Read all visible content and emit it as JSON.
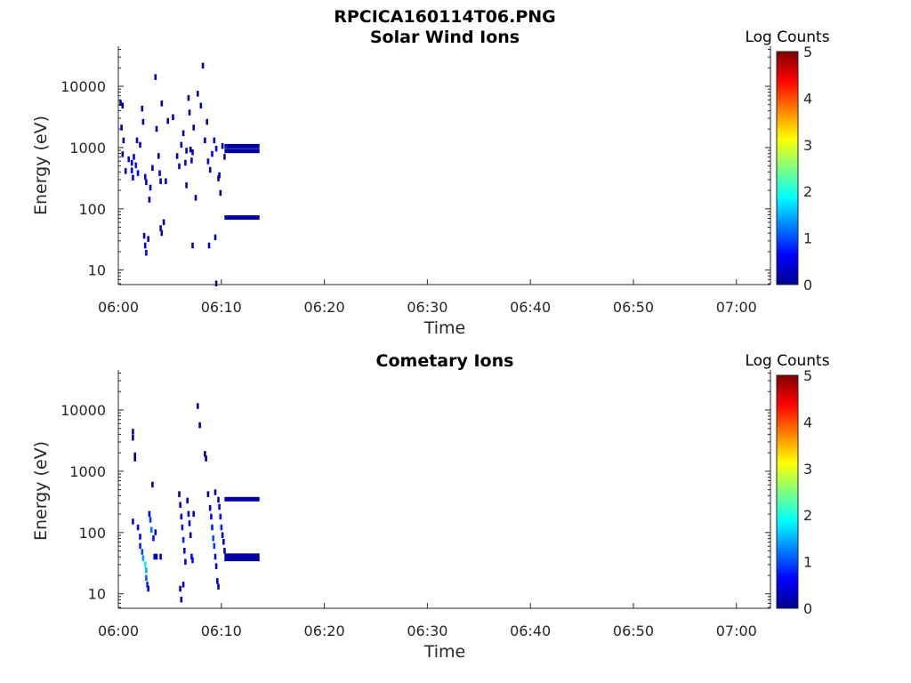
{
  "figure": {
    "title": "RPCICA160114T06.PNG"
  },
  "chart_data": [
    {
      "type": "heatmap",
      "title": "Solar Wind Ions",
      "xlabel": "Time",
      "ylabel": "Energy (eV)",
      "x_tick_labels": [
        "06:00",
        "06:10",
        "06:20",
        "06:30",
        "06:40",
        "06:50",
        "07:00"
      ],
      "x_tick_values_min": [
        0,
        10,
        20,
        30,
        40,
        50,
        60
      ],
      "xlim_min": [
        0,
        63.3
      ],
      "y_scale": "log",
      "y_tick_labels": [
        "10",
        "100",
        "1000",
        "10000"
      ],
      "y_tick_values": [
        10,
        100,
        1000,
        10000
      ],
      "ylim": [
        5.8,
        45000
      ],
      "colorbar": {
        "label": "Log Counts",
        "min": 0,
        "max": 5,
        "tick_labels": [
          "0",
          "1",
          "2",
          "3",
          "4",
          "5"
        ],
        "colormap": "jet"
      },
      "cells": [
        [
          0.1,
          5300,
          0.1
        ],
        [
          0.3,
          4800,
          0.1
        ],
        [
          0.2,
          2100,
          0.1
        ],
        [
          0.4,
          1300,
          0.1
        ],
        [
          0.3,
          770,
          0.2
        ],
        [
          0.6,
          410,
          0.2
        ],
        [
          0.9,
          640,
          0.3
        ],
        [
          1.2,
          560,
          0.4
        ],
        [
          1.2,
          420,
          0.5
        ],
        [
          1.3,
          320,
          0.6
        ],
        [
          1.4,
          700,
          0.6
        ],
        [
          1.6,
          510,
          0.7
        ],
        [
          1.7,
          1300,
          0.4
        ],
        [
          1.8,
          380,
          0.5
        ],
        [
          2.0,
          1100,
          0.3
        ],
        [
          2.2,
          4300,
          0.2
        ],
        [
          2.3,
          2600,
          0.1
        ],
        [
          2.5,
          330,
          0.4
        ],
        [
          2.6,
          270,
          0.3
        ],
        [
          2.9,
          140,
          0.2
        ],
        [
          2.4,
          36,
          0.4
        ],
        [
          2.5,
          25,
          0.5
        ],
        [
          2.6,
          19,
          0.6
        ],
        [
          2.8,
          32,
          0.3
        ],
        [
          3.0,
          220,
          0.2
        ],
        [
          3.2,
          460,
          0.3
        ],
        [
          3.5,
          14000,
          0.2
        ],
        [
          3.6,
          2000,
          0.2
        ],
        [
          3.8,
          720,
          0.3
        ],
        [
          3.9,
          380,
          0.4
        ],
        [
          4.0,
          280,
          0.3
        ],
        [
          4.1,
          5200,
          0.2
        ],
        [
          4.3,
          60,
          0.2
        ],
        [
          4.5,
          280,
          0.3
        ],
        [
          4.0,
          48,
          0.2
        ],
        [
          4.1,
          40,
          0.2
        ],
        [
          4.7,
          2700,
          0.1
        ],
        [
          5.2,
          3100,
          0.1
        ],
        [
          5.6,
          720,
          0.2
        ],
        [
          5.8,
          490,
          0.3
        ],
        [
          6.0,
          1100,
          0.2
        ],
        [
          6.2,
          1700,
          0.1
        ],
        [
          6.4,
          560,
          0.3
        ],
        [
          6.5,
          880,
          0.4
        ],
        [
          6.7,
          6400,
          0.2
        ],
        [
          6.8,
          3700,
          0.1
        ],
        [
          6.9,
          920,
          0.3
        ],
        [
          7.0,
          610,
          0.4
        ],
        [
          7.1,
          830,
          0.5
        ],
        [
          7.2,
          2100,
          0.2
        ],
        [
          7.4,
          150,
          0.1
        ],
        [
          7.6,
          7500,
          0.1
        ],
        [
          7.9,
          4800,
          0.2
        ],
        [
          8.1,
          21500,
          0.1
        ],
        [
          8.3,
          1300,
          0.3
        ],
        [
          8.5,
          2600,
          0.2
        ],
        [
          8.6,
          590,
          0.4
        ],
        [
          8.8,
          430,
          0.3
        ],
        [
          9.0,
          780,
          0.5
        ],
        [
          9.2,
          1300,
          0.3
        ],
        [
          9.4,
          950,
          0.4
        ],
        [
          9.6,
          310,
          0.3
        ],
        [
          9.8,
          180,
          0.1
        ],
        [
          8.7,
          25,
          0.2
        ],
        [
          9.3,
          34,
          0.1
        ],
        [
          9.4,
          6,
          0.2
        ],
        [
          7.1,
          25,
          0.3
        ],
        [
          6.5,
          240,
          0.2
        ],
        [
          9.7,
          350,
          0.2
        ],
        [
          10.0,
          1050,
          0.1
        ],
        [
          10.2,
          700,
          0.2
        ]
      ],
      "bands": [
        {
          "t_start": 10.3,
          "t_end": 13.7,
          "energy": 1050,
          "level": 0.1
        },
        {
          "t_start": 10.3,
          "t_end": 13.7,
          "energy": 880,
          "level": 0.1
        },
        {
          "t_start": 10.3,
          "t_end": 13.7,
          "energy": 72,
          "level": 0.1
        }
      ]
    },
    {
      "type": "heatmap",
      "title": "Cometary Ions",
      "xlabel": "Time",
      "ylabel": "Energy (eV)",
      "x_tick_labels": [
        "06:00",
        "06:10",
        "06:20",
        "06:30",
        "06:40",
        "06:50",
        "07:00"
      ],
      "x_tick_values_min": [
        0,
        10,
        20,
        30,
        40,
        50,
        60
      ],
      "xlim_min": [
        0,
        63.3
      ],
      "y_scale": "log",
      "y_tick_labels": [
        "10",
        "100",
        "1000",
        "10000"
      ],
      "y_tick_values": [
        10,
        100,
        1000,
        10000
      ],
      "ylim": [
        5.8,
        45000
      ],
      "colorbar": {
        "label": "Log Counts",
        "min": 0,
        "max": 5,
        "tick_labels": [
          "0",
          "1",
          "2",
          "3",
          "4",
          "5"
        ],
        "colormap": "jet"
      },
      "cells": [
        [
          1.3,
          4400,
          0.1
        ],
        [
          1.3,
          3500,
          0.1
        ],
        [
          1.5,
          1800,
          0.1
        ],
        [
          1.5,
          1600,
          0.1
        ],
        [
          1.3,
          150,
          0.2
        ],
        [
          1.8,
          120,
          0.4
        ],
        [
          2.0,
          85,
          0.6
        ],
        [
          2.0,
          60,
          0.8
        ],
        [
          2.2,
          48,
          1.0
        ],
        [
          2.3,
          38,
          1.4
        ],
        [
          2.5,
          30,
          1.8
        ],
        [
          2.6,
          24,
          1.5
        ],
        [
          2.6,
          18,
          1.1
        ],
        [
          2.7,
          14,
          0.8
        ],
        [
          2.8,
          12,
          0.6
        ],
        [
          2.9,
          200,
          0.5
        ],
        [
          3.0,
          160,
          0.9
        ],
        [
          3.1,
          110,
          1.2
        ],
        [
          3.2,
          600,
          0.2
        ],
        [
          3.3,
          80,
          0.7
        ],
        [
          3.4,
          40,
          0.5
        ],
        [
          3.6,
          40,
          0.3
        ],
        [
          4.0,
          40,
          0.2
        ],
        [
          3.5,
          100,
          0.4
        ],
        [
          5.8,
          420,
          0.2
        ],
        [
          5.9,
          280,
          0.4
        ],
        [
          6.0,
          180,
          0.6
        ],
        [
          6.1,
          120,
          0.7
        ],
        [
          6.2,
          75,
          0.8
        ],
        [
          6.3,
          50,
          0.6
        ],
        [
          6.4,
          33,
          0.4
        ],
        [
          6.2,
          14,
          0.3
        ],
        [
          6.0,
          8,
          0.2
        ],
        [
          5.9,
          12,
          0.2
        ],
        [
          6.6,
          330,
          0.3
        ],
        [
          6.7,
          200,
          0.5
        ],
        [
          6.8,
          140,
          0.4
        ],
        [
          6.9,
          90,
          0.3
        ],
        [
          7.0,
          40,
          0.6
        ],
        [
          7.1,
          35,
          0.7
        ],
        [
          7.2,
          200,
          0.3
        ],
        [
          7.6,
          11500,
          0.1
        ],
        [
          7.8,
          5600,
          0.1
        ],
        [
          8.3,
          1900,
          0.1
        ],
        [
          8.4,
          1600,
          0.1
        ],
        [
          8.6,
          420,
          0.2
        ],
        [
          8.8,
          250,
          0.4
        ],
        [
          8.9,
          180,
          0.6
        ],
        [
          9.0,
          120,
          0.8
        ],
        [
          9.1,
          80,
          1.0
        ],
        [
          9.2,
          60,
          0.9
        ],
        [
          9.3,
          40,
          0.7
        ],
        [
          9.4,
          28,
          0.5
        ],
        [
          9.5,
          16,
          0.4
        ],
        [
          9.6,
          13,
          0.3
        ],
        [
          9.3,
          450,
          0.2
        ],
        [
          9.6,
          340,
          0.4
        ],
        [
          9.7,
          260,
          0.6
        ],
        [
          9.8,
          180,
          0.7
        ],
        [
          9.9,
          120,
          0.8
        ],
        [
          10.0,
          90,
          0.6
        ],
        [
          10.1,
          70,
          0.4
        ],
        [
          10.2,
          50,
          0.3
        ]
      ],
      "bands": [
        {
          "t_start": 10.3,
          "t_end": 13.7,
          "energy": 350,
          "level": 0.1
        },
        {
          "t_start": 10.3,
          "t_end": 13.7,
          "energy": 42,
          "level": 0.15
        },
        {
          "t_start": 10.3,
          "t_end": 13.7,
          "energy": 37,
          "level": 0.1
        }
      ]
    }
  ]
}
